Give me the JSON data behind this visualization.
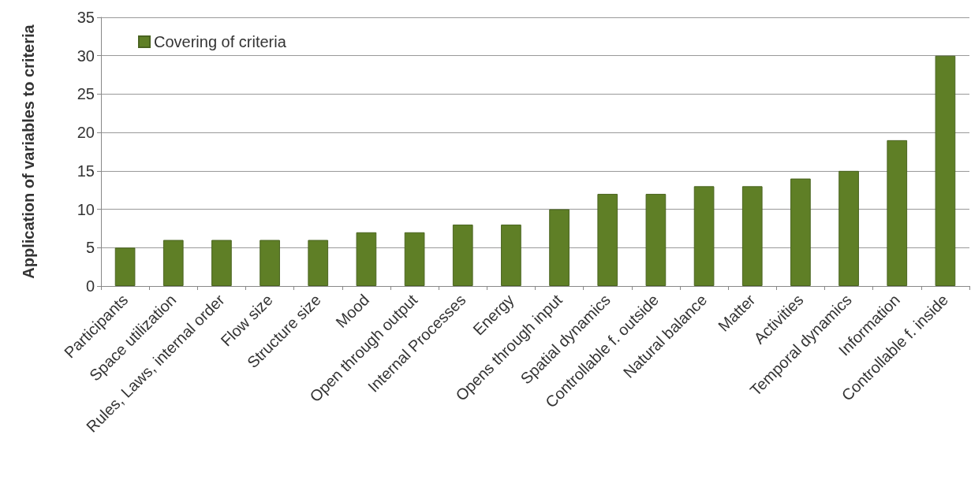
{
  "chart_data": {
    "type": "bar",
    "ylabel": "Application of variables to criteria",
    "categories": [
      "Participants",
      "Space utilization",
      "Rules, Laws, internal order",
      "Flow size",
      "Structure size",
      "Mood",
      "Open through output",
      "Internal Processes",
      "Energy",
      "Opens through input",
      "Spatial dynamics",
      "Controllable f. outside",
      "Natural balance",
      "Matter",
      "Activities",
      "Temporal dynamics",
      "Information",
      "Controllable f. inside"
    ],
    "series": [
      {
        "name": "Covering of criteria",
        "color": "#5f7f26",
        "values": [
          5,
          6,
          6,
          6,
          6,
          7,
          7,
          8,
          8,
          10,
          12,
          12,
          13,
          13,
          14,
          15,
          19,
          30
        ]
      }
    ],
    "ylim": [
      0,
      35
    ],
    "yticks": [
      0,
      5,
      10,
      15,
      20,
      25,
      30,
      35
    ],
    "grid": "y",
    "legend": "top left"
  }
}
